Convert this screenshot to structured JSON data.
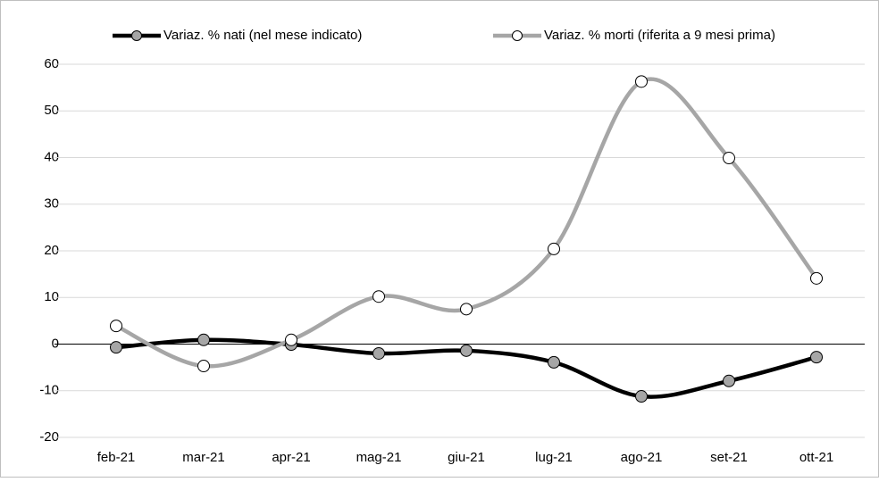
{
  "chart_data": {
    "type": "line",
    "categories": [
      "feb-21",
      "mar-21",
      "apr-21",
      "mag-21",
      "giu-21",
      "lug-21",
      "ago-21",
      "set-21",
      "ott-21"
    ],
    "series": [
      {
        "name": "Variaz. % nati (nel mese indicato)",
        "color": "#000000",
        "marker_fill": "#a6a6a6",
        "values": [
          -0.7,
          0.9,
          -0.1,
          -2.0,
          -1.4,
          -3.9,
          -11.2,
          -7.9,
          -2.8
        ]
      },
      {
        "name": "Variaz. % morti (riferita a 9 mesi prima)",
        "color": "#a6a6a6",
        "marker_fill": "#ffffff",
        "values": [
          3.9,
          -4.7,
          0.9,
          10.2,
          7.5,
          20.4,
          56.3,
          39.9,
          14.1
        ]
      }
    ],
    "ylim": [
      -20,
      60
    ],
    "yticks": [
      -20,
      -10,
      0,
      10,
      20,
      30,
      40,
      50,
      60
    ],
    "grid": true,
    "smooth": true,
    "legend": "top"
  }
}
